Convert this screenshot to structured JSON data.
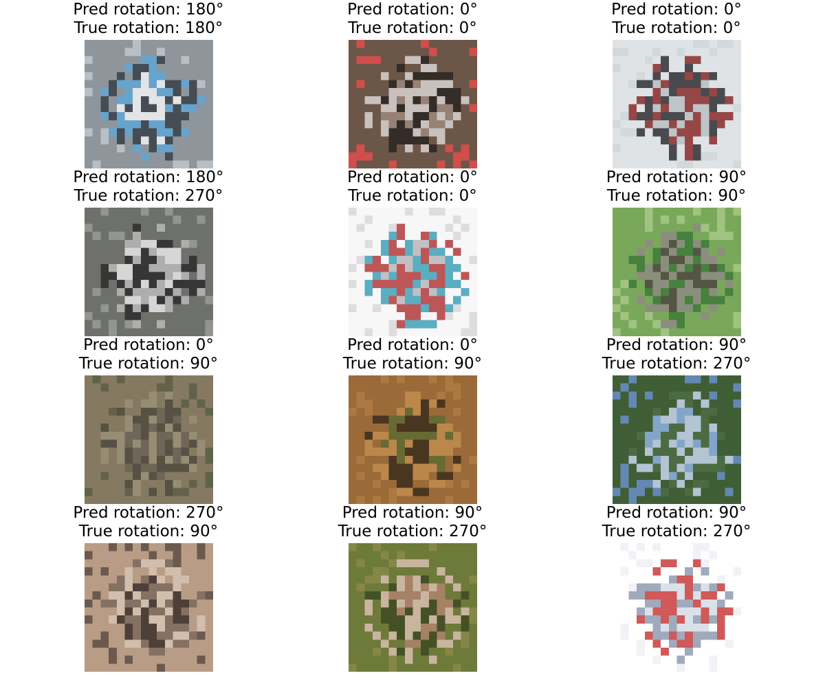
{
  "panels": [
    {
      "pred": "Pred rotation: 180°",
      "true": "True rotation: 180°",
      "subject": "car-photo-icon",
      "colors": [
        "#8e969c",
        "#f2f2f2",
        "#3a3f48",
        "#5fa7d6",
        "#7c8b94",
        "#c0c8cd"
      ]
    },
    {
      "pred": "Pred rotation: 0°",
      "true": "True rotation: 0°",
      "subject": "elephant-photo-icon",
      "colors": [
        "#6b5648",
        "#9c8a7c",
        "#2a2522",
        "#d8d4d2",
        "#c9b6a4",
        "#e24c4c"
      ]
    },
    {
      "pred": "Pred rotation: 0°",
      "true": "True rotation: 0°",
      "subject": "ship-photo-icon",
      "colors": [
        "#dfe3e5",
        "#b7c0c3",
        "#2f2f33",
        "#8a2a2c",
        "#a9b1b2",
        "#cfd7d9"
      ]
    },
    {
      "pred": "Pred rotation: 180°",
      "true": "True rotation: 270°",
      "subject": "truck-photo-icon",
      "colors": [
        "#6e706c",
        "#e8e8e8",
        "#2c2c2c",
        "#b8b8b8",
        "#8d2a30",
        "#9a9c97"
      ]
    },
    {
      "pred": "Pred rotation: 0°",
      "true": "True rotation: 0°",
      "subject": "ship-photo-icon",
      "colors": [
        "#f7f7f8",
        "#b9b6ba",
        "#3fa0b8",
        "#b33a3a",
        "#6b6d77",
        "#d9d7db"
      ]
    },
    {
      "pred": "Pred rotation: 90°",
      "true": "True rotation: 90°",
      "subject": "horse-photo-icon",
      "colors": [
        "#79a85a",
        "#4e4640",
        "#3d7a3a",
        "#8f8a84",
        "#2f2a27",
        "#a8c88a"
      ]
    },
    {
      "pred": "Pred rotation: 0°",
      "true": "True rotation: 90°",
      "subject": "bird-photo-icon",
      "colors": [
        "#857a62",
        "#6a6356",
        "#9a8f78",
        "#4e4a3e",
        "#f2efeb",
        "#5c5e48"
      ]
    },
    {
      "pred": "Pred rotation: 0°",
      "true": "True rotation: 90°",
      "subject": "frog-photo-icon",
      "colors": [
        "#9a6a38",
        "#5e6a32",
        "#c18c4f",
        "#3b2d1c",
        "#7c8a3e",
        "#b07a44"
      ]
    },
    {
      "pred": "Pred rotation: 90°",
      "true": "True rotation: 270°",
      "subject": "airplane-photo-icon",
      "colors": [
        "#3f5e36",
        "#8fb1e0",
        "#4e6e44",
        "#c8d6ee",
        "#2f4a2a",
        "#6a8fc8"
      ]
    },
    {
      "pred": "Pred rotation: 270°",
      "true": "True rotation: 90°",
      "subject": "dog-photo-icon",
      "colors": [
        "#b89c86",
        "#3a302c",
        "#7a6a5c",
        "#d6c4b4",
        "#4a5a6e",
        "#5e4d44"
      ]
    },
    {
      "pred": "Pred rotation: 90°",
      "true": "True rotation: 270°",
      "subject": "ostrich-photo-icon",
      "colors": [
        "#6e7a3a",
        "#b0826e",
        "#3e4a22",
        "#d8c0b0",
        "#c85a5a",
        "#8a8a4a"
      ]
    },
    {
      "pred": "Pred rotation: 90°",
      "true": "True rotation: 270°",
      "subject": "airplane-photo-icon",
      "colors": [
        "#ffffff",
        "#d6dbe4",
        "#8e9bb0",
        "#c83c3c",
        "#aab4c4",
        "#eef0f4"
      ]
    }
  ]
}
